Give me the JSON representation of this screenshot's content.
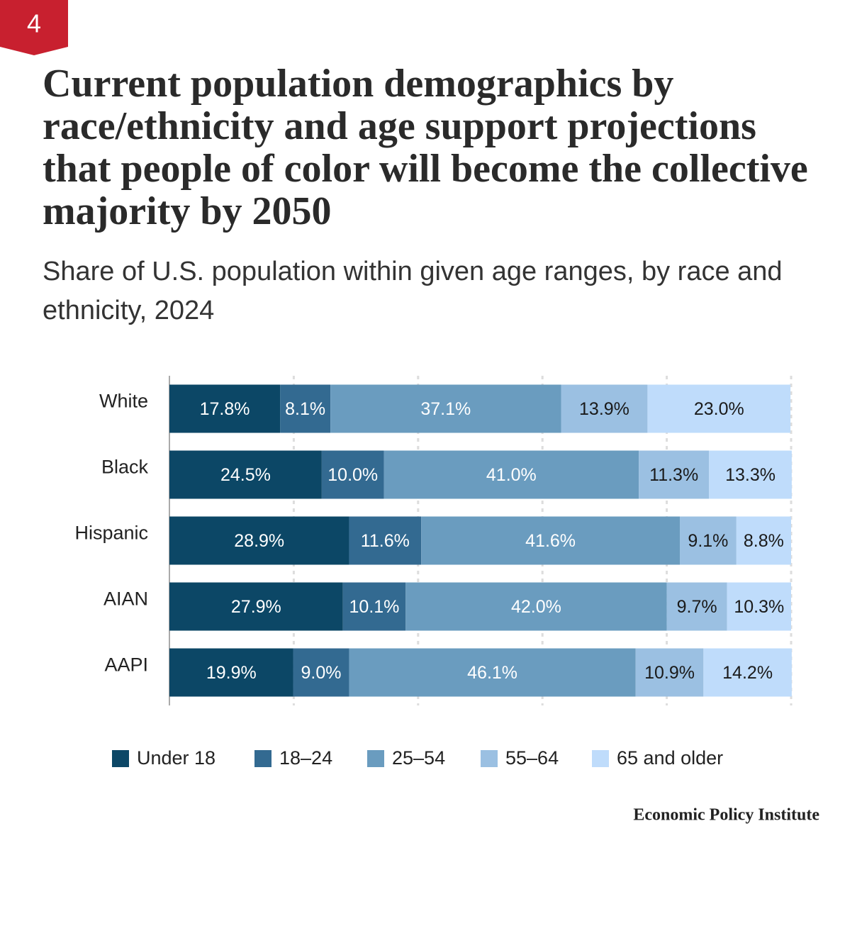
{
  "badge": "4",
  "chart_data": {
    "type": "stacked-barh",
    "title": "Current population demographics by race/ethnicity and age support projections that people of color will become the collective majority by 2050",
    "subtitle": "Share of U.S. population within given age ranges, by race and ethnicity, 2024",
    "categories": [
      "White",
      "Black",
      "Hispanic",
      "AIAN",
      "AAPI"
    ],
    "series": [
      {
        "name": "Under 18",
        "color": "#0c4766",
        "label_color": "#ffffff",
        "values": [
          17.8,
          24.5,
          28.9,
          27.9,
          19.9
        ],
        "value_labels": [
          "17.8%",
          "24.5%",
          "28.9%",
          "27.9%",
          "19.9%"
        ]
      },
      {
        "name": "18–24",
        "color": "#336a91",
        "label_color": "#ffffff",
        "values": [
          8.1,
          10.0,
          11.6,
          10.1,
          9.0
        ],
        "value_labels": [
          "8.1%",
          "10.0%",
          "11.6%",
          "10.1%",
          "9.0%"
        ]
      },
      {
        "name": "25–54",
        "color": "#6a9cbf",
        "label_color": "#ffffff",
        "values": [
          37.1,
          41.0,
          41.6,
          42.0,
          46.1
        ],
        "value_labels": [
          "37.1%",
          "41.0%",
          "41.6%",
          "42.0%",
          "46.1%"
        ]
      },
      {
        "name": "55–64",
        "color": "#9bc0e2",
        "label_color": "#1a1a1a",
        "values": [
          13.9,
          11.3,
          9.1,
          9.7,
          10.9
        ],
        "value_labels": [
          "13.9%",
          "11.3%",
          "9.1%",
          "9.7%",
          "10.9%"
        ]
      },
      {
        "name": "65 and older",
        "color": "#bfdcfb",
        "label_color": "#1a1a1a",
        "values": [
          23.0,
          13.3,
          8.8,
          10.3,
          14.2
        ],
        "value_labels": [
          "23.0%",
          "13.3%",
          "8.8%",
          "10.3%",
          "14.2%"
        ]
      }
    ],
    "xlim": [
      0,
      100
    ],
    "xticks": [
      0,
      20,
      40,
      60,
      80,
      100
    ],
    "grid": true
  },
  "source": "Economic Policy Institute"
}
